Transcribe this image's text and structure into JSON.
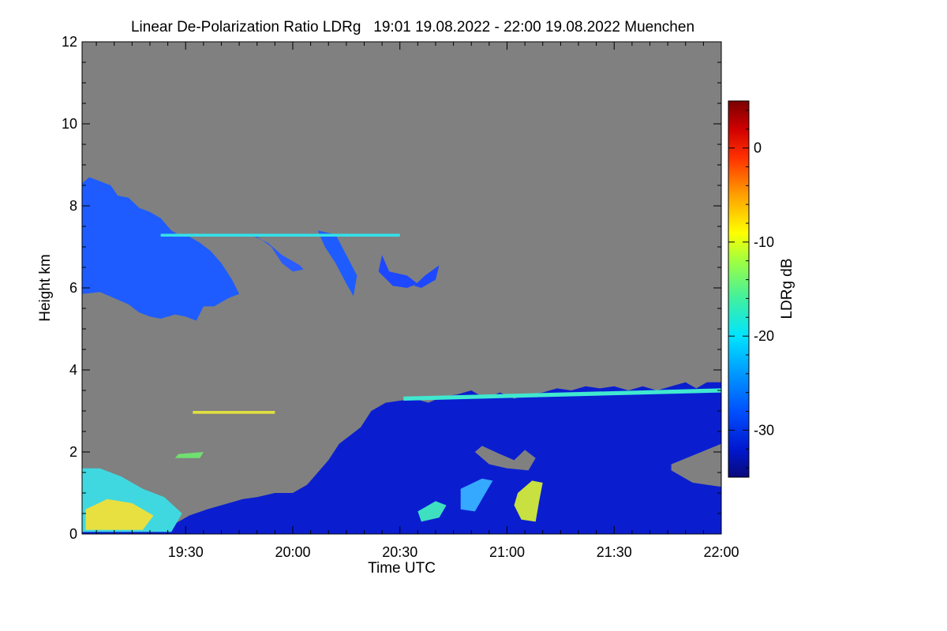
{
  "chart_data": {
    "type": "heatmap",
    "title": "Linear De-Polarization Ratio LDRg   19:01 19.08.2022 - 22:00 19.08.2022 Muenchen",
    "xlabel": "Time UTC",
    "ylabel": "Height km",
    "x_range_minutes": [
      1141,
      1320
    ],
    "xlim_utc": [
      "19:01",
      "22:00"
    ],
    "x_ticks": [
      {
        "minutes": 1170,
        "label": "19:30"
      },
      {
        "minutes": 1200,
        "label": "20:00"
      },
      {
        "minutes": 1230,
        "label": "20:30"
      },
      {
        "minutes": 1260,
        "label": "21:00"
      },
      {
        "minutes": 1290,
        "label": "21:30"
      },
      {
        "minutes": 1320,
        "label": "22:00"
      }
    ],
    "ylim": [
      0,
      12
    ],
    "y_ticks": [
      {
        "value": 0,
        "label": "0"
      },
      {
        "value": 2,
        "label": "2"
      },
      {
        "value": 4,
        "label": "4"
      },
      {
        "value": 6,
        "label": "6"
      },
      {
        "value": 8,
        "label": "8"
      },
      {
        "value": 10,
        "label": "10"
      },
      {
        "value": 12,
        "label": "12"
      }
    ],
    "no_data_color": "#808080",
    "colorbar": {
      "label": "LDRg dB",
      "range": [
        -35,
        5
      ],
      "ticks": [
        {
          "value": 0,
          "label": "0"
        },
        {
          "value": -10,
          "label": "-10"
        },
        {
          "value": -20,
          "label": "-20"
        },
        {
          "value": -30,
          "label": "-30"
        }
      ],
      "stops": [
        {
          "value": -35,
          "color": "#0a0a7a"
        },
        {
          "value": -32,
          "color": "#0018d0"
        },
        {
          "value": -28,
          "color": "#0050ff"
        },
        {
          "value": -24,
          "color": "#0098ff"
        },
        {
          "value": -20,
          "color": "#00e4ff"
        },
        {
          "value": -16,
          "color": "#40f0a0"
        },
        {
          "value": -12,
          "color": "#a0ff40"
        },
        {
          "value": -9,
          "color": "#ffff00"
        },
        {
          "value": -5,
          "color": "#ffa000"
        },
        {
          "value": -1,
          "color": "#ff3000"
        },
        {
          "value": 2,
          "color": "#d00000"
        },
        {
          "value": 5,
          "color": "#7a0000"
        }
      ]
    },
    "regions": [
      {
        "name": "cirrus-layer",
        "color": "#1e5cff",
        "ldr_db": -27,
        "points": [
          [
            1141,
            8.55
          ],
          [
            1143,
            8.7
          ],
          [
            1146,
            8.6
          ],
          [
            1149,
            8.5
          ],
          [
            1151,
            8.25
          ],
          [
            1154,
            8.2
          ],
          [
            1157,
            7.95
          ],
          [
            1160,
            7.85
          ],
          [
            1163,
            7.7
          ],
          [
            1166,
            7.4
          ],
          [
            1168,
            7.3
          ],
          [
            1171,
            7.25
          ],
          [
            1174,
            7.1
          ],
          [
            1177,
            6.9
          ],
          [
            1180,
            6.6
          ],
          [
            1183,
            6.2
          ],
          [
            1185,
            5.85
          ],
          [
            1182,
            5.75
          ],
          [
            1178,
            5.55
          ],
          [
            1175,
            5.55
          ],
          [
            1173,
            5.2
          ],
          [
            1170,
            5.3
          ],
          [
            1167,
            5.35
          ],
          [
            1163,
            5.25
          ],
          [
            1160,
            5.3
          ],
          [
            1157,
            5.4
          ],
          [
            1154,
            5.6
          ],
          [
            1150,
            5.75
          ],
          [
            1146,
            5.9
          ],
          [
            1141,
            5.85
          ]
        ]
      },
      {
        "name": "cirrus-streamer-1",
        "color": "#2a5cff",
        "ldr_db": -26,
        "points": [
          [
            1183,
            7.3
          ],
          [
            1190,
            7.25
          ],
          [
            1194,
            7.0
          ],
          [
            1197,
            6.6
          ],
          [
            1200,
            6.4
          ],
          [
            1203,
            6.45
          ],
          [
            1202,
            6.55
          ],
          [
            1197,
            6.8
          ],
          [
            1193,
            7.1
          ],
          [
            1188,
            7.3
          ]
        ]
      },
      {
        "name": "cirrus-streamer-2",
        "color": "#1e5cff",
        "ldr_db": -27,
        "points": [
          [
            1207,
            7.4
          ],
          [
            1212,
            7.3
          ],
          [
            1215,
            6.8
          ],
          [
            1218,
            6.3
          ],
          [
            1217,
            5.8
          ],
          [
            1215,
            6.1
          ],
          [
            1212,
            6.6
          ],
          [
            1209,
            7.0
          ]
        ]
      },
      {
        "name": "cirrus-fragment",
        "color": "#1e48ff",
        "ldr_db": -29,
        "points": [
          [
            1225,
            6.8
          ],
          [
            1227,
            6.4
          ],
          [
            1232,
            6.3
          ],
          [
            1235,
            6.1
          ],
          [
            1232,
            6.0
          ],
          [
            1228,
            6.05
          ],
          [
            1224,
            6.4
          ]
        ]
      },
      {
        "name": "cirrus-fragment",
        "color": "#1e48ff",
        "ldr_db": -29,
        "points": [
          [
            1237,
            6.3
          ],
          [
            1241,
            6.55
          ],
          [
            1240,
            6.2
          ],
          [
            1236,
            6.0
          ],
          [
            1234,
            6.05
          ]
        ]
      },
      {
        "name": "cirrus-base-thin",
        "color": "#35e0e8",
        "ldr_db": -20,
        "points": [
          [
            1163,
            7.32
          ],
          [
            1230,
            7.32
          ],
          [
            1230,
            7.25
          ],
          [
            1163,
            7.25
          ]
        ]
      },
      {
        "name": "boundary-layer",
        "color": "#0a1ed0",
        "ldr_db": -32,
        "points": [
          [
            1141,
            0
          ],
          [
            1320,
            0
          ],
          [
            1320,
            3.7
          ],
          [
            1316,
            3.7
          ],
          [
            1313,
            3.55
          ],
          [
            1310,
            3.7
          ],
          [
            1306,
            3.6
          ],
          [
            1302,
            3.5
          ],
          [
            1298,
            3.6
          ],
          [
            1294,
            3.5
          ],
          [
            1290,
            3.6
          ],
          [
            1286,
            3.55
          ],
          [
            1282,
            3.6
          ],
          [
            1278,
            3.5
          ],
          [
            1274,
            3.55
          ],
          [
            1270,
            3.45
          ],
          [
            1266,
            3.4
          ],
          [
            1262,
            3.3
          ],
          [
            1258,
            3.45
          ],
          [
            1254,
            3.3
          ],
          [
            1250,
            3.5
          ],
          [
            1246,
            3.4
          ],
          [
            1242,
            3.35
          ],
          [
            1238,
            3.2
          ],
          [
            1234,
            3.3
          ],
          [
            1230,
            3.25
          ],
          [
            1226,
            3.2
          ],
          [
            1222,
            3.0
          ],
          [
            1219,
            2.6
          ],
          [
            1216,
            2.4
          ],
          [
            1213,
            2.2
          ],
          [
            1210,
            1.8
          ],
          [
            1207,
            1.5
          ],
          [
            1204,
            1.2
          ],
          [
            1200,
            1.0
          ],
          [
            1195,
            1.0
          ],
          [
            1190,
            0.9
          ],
          [
            1186,
            0.85
          ],
          [
            1182,
            0.75
          ],
          [
            1176,
            0.6
          ],
          [
            1171,
            0.45
          ],
          [
            1166,
            0.2
          ],
          [
            1160,
            0.1
          ],
          [
            1141,
            0.05
          ]
        ]
      },
      {
        "name": "near-surface-aerosol",
        "color": "#40d8e0",
        "ldr_db": -18,
        "points": [
          [
            1141,
            0.05
          ],
          [
            1166,
            0.05
          ],
          [
            1169,
            0.5
          ],
          [
            1164,
            0.9
          ],
          [
            1158,
            1.1
          ],
          [
            1152,
            1.4
          ],
          [
            1146,
            1.6
          ],
          [
            1141,
            1.6
          ]
        ]
      },
      {
        "name": "near-surface-aerosol",
        "color": "#e8e040",
        "ldr_db": -9,
        "points": [
          [
            1142,
            0.1
          ],
          [
            1158,
            0.1
          ],
          [
            1161,
            0.45
          ],
          [
            1155,
            0.75
          ],
          [
            1148,
            0.85
          ],
          [
            1142,
            0.6
          ]
        ]
      },
      {
        "name": "data-gap",
        "color": "#808080",
        "ldr_db": null,
        "points": [
          [
            1253,
            2.15
          ],
          [
            1258,
            1.95
          ],
          [
            1262,
            1.8
          ],
          [
            1265,
            2.05
          ],
          [
            1268,
            1.85
          ],
          [
            1266,
            1.55
          ],
          [
            1260,
            1.6
          ],
          [
            1255,
            1.7
          ],
          [
            1251,
            2.0
          ]
        ]
      },
      {
        "name": "data-gap",
        "color": "#808080",
        "ldr_db": null,
        "points": [
          [
            1306,
            1.7
          ],
          [
            1320,
            2.2
          ],
          [
            1320,
            1.15
          ],
          [
            1312,
            1.25
          ],
          [
            1306,
            1.55
          ]
        ]
      },
      {
        "name": "fall-streak",
        "color": "#35a8ff",
        "ldr_db": -23,
        "points": [
          [
            1247,
            1.1
          ],
          [
            1253,
            1.35
          ],
          [
            1256,
            1.3
          ],
          [
            1254,
            1.0
          ],
          [
            1251,
            0.55
          ],
          [
            1247,
            0.6
          ]
        ]
      },
      {
        "name": "fall-streak",
        "color": "#c8e040",
        "ldr_db": -12,
        "points": [
          [
            1263,
            1.0
          ],
          [
            1267,
            1.3
          ],
          [
            1270,
            1.25
          ],
          [
            1269,
            0.8
          ],
          [
            1268,
            0.3
          ],
          [
            1264,
            0.35
          ],
          [
            1262,
            0.7
          ]
        ]
      },
      {
        "name": "fall-streak",
        "color": "#3ee0c0",
        "ldr_db": -18,
        "points": [
          [
            1235,
            0.55
          ],
          [
            1240,
            0.8
          ],
          [
            1243,
            0.7
          ],
          [
            1241,
            0.4
          ],
          [
            1236,
            0.3
          ]
        ]
      },
      {
        "name": "cloud-top-edge",
        "color": "#40e8d0",
        "ldr_db": -17,
        "points": [
          [
            1231,
            3.35
          ],
          [
            1320,
            3.55
          ],
          [
            1320,
            3.45
          ],
          [
            1231,
            3.25
          ]
        ]
      },
      {
        "name": "isolated-echo",
        "color": "#70e070",
        "ldr_db": -15,
        "points": [
          [
            1168,
            1.95
          ],
          [
            1175,
            2.0
          ],
          [
            1174,
            1.85
          ],
          [
            1167,
            1.85
          ]
        ]
      },
      {
        "name": "isolated-echo",
        "color": "#e0e040",
        "ldr_db": -9,
        "points": [
          [
            1172,
            3.0
          ],
          [
            1195,
            3.0
          ],
          [
            1195,
            2.93
          ],
          [
            1172,
            2.93
          ]
        ]
      }
    ]
  }
}
